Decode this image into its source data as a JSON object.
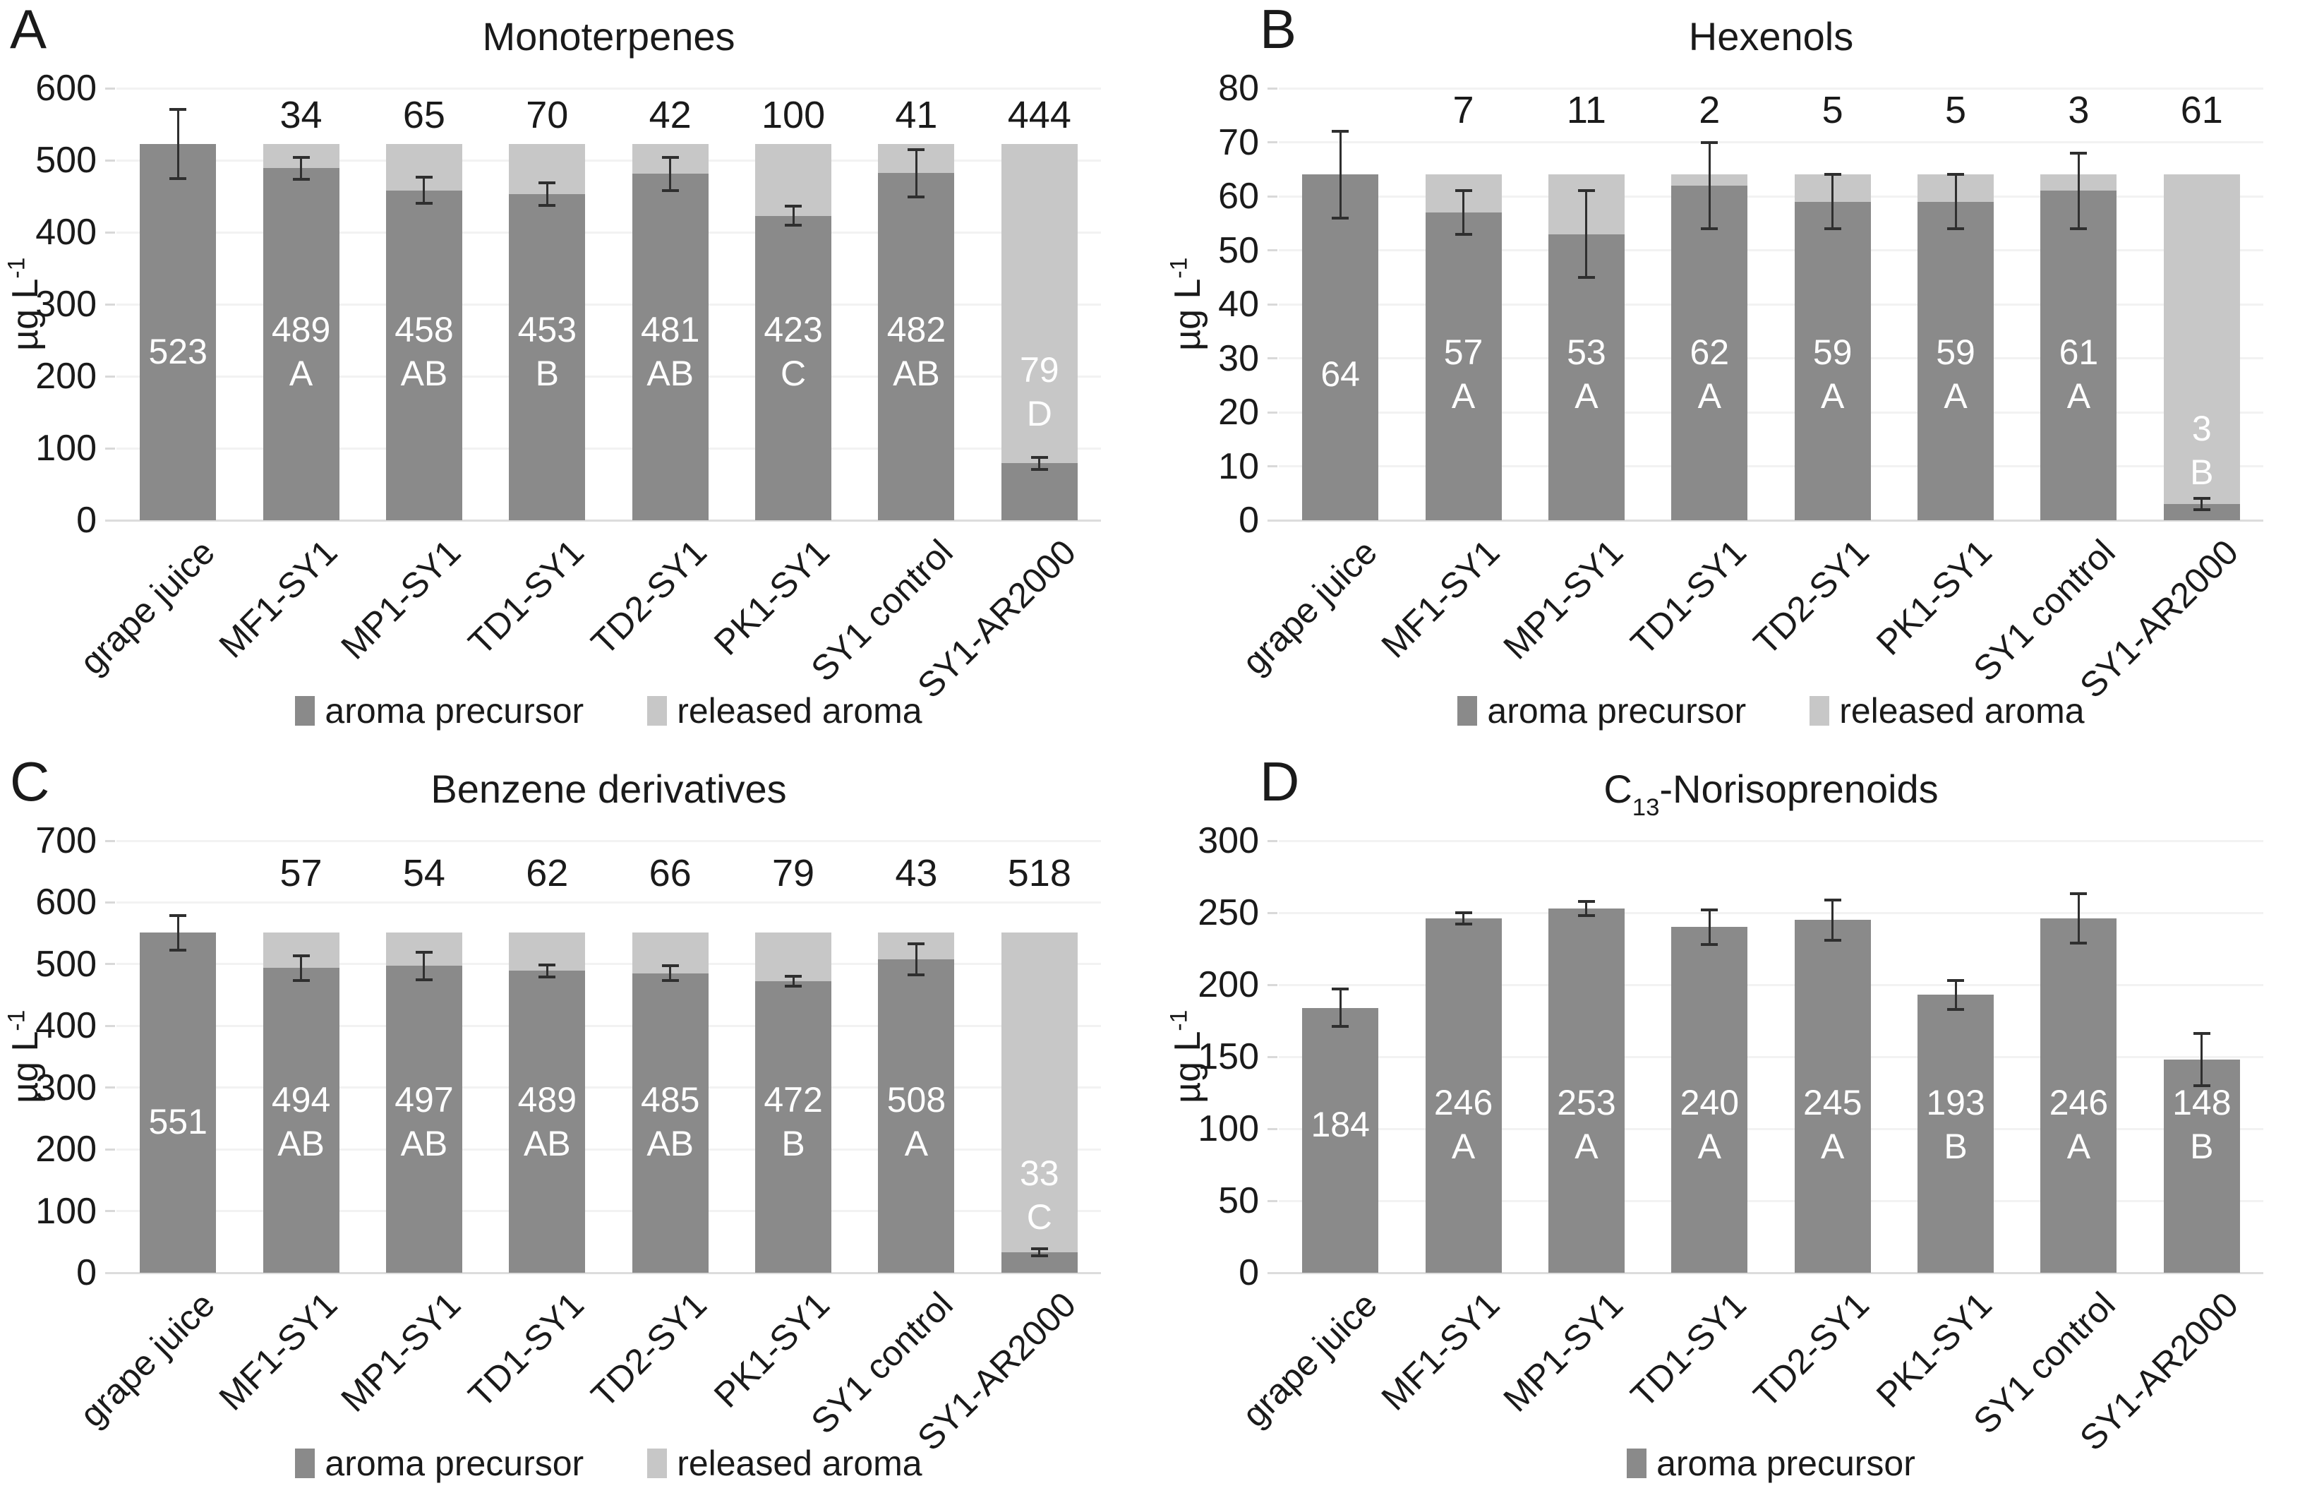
{
  "figure": {
    "background": "#ffffff"
  },
  "colors": {
    "precursor": "#8a8a8a",
    "released": "#c7c7c7",
    "error_bar": "#2f2f2f",
    "gridline": "#f2f2f2",
    "baseline": "#dcdcdc",
    "tick_stub": "#d9d9d9",
    "bar_label": "#ffffff",
    "text": "#1a1a1a"
  },
  "categories": [
    "grape juice",
    "MF1-SY1",
    "MP1-SY1",
    "TD1-SY1",
    "TD2-SY1",
    "PK1-SY1",
    "SY1 control",
    "SY1-AR2000"
  ],
  "ylabel": {
    "base": "µg L",
    "sup": "-1"
  },
  "legend": {
    "precursor": "aroma precursor",
    "released": "released aroma"
  },
  "chart_data": [
    {
      "panel_letter": "A",
      "title_parts": [
        {
          "text": "Monoterpenes"
        }
      ],
      "type": "bar",
      "stacked": true,
      "ymax": 600,
      "ystep": 100,
      "yticks": [
        0,
        100,
        200,
        300,
        400,
        500,
        600
      ],
      "series": [
        {
          "name": "aroma precursor",
          "values": [
            523,
            489,
            458,
            453,
            481,
            423,
            482,
            79
          ]
        },
        {
          "name": "released aroma",
          "values": [
            0,
            34,
            65,
            70,
            42,
            100,
            41,
            444
          ]
        }
      ],
      "sig_letters": [
        "",
        "A",
        "AB",
        "B",
        "AB",
        "C",
        "AB",
        "D"
      ],
      "error_bars": [
        48,
        15,
        18,
        16,
        23,
        13,
        33,
        8
      ],
      "label_center_value": 234,
      "label_center_overrides": {
        "7": 178
      },
      "top_label_anchor": 563,
      "legend_items": [
        "precursor",
        "released"
      ]
    },
    {
      "panel_letter": "B",
      "title_parts": [
        {
          "text": "Hexenols"
        }
      ],
      "type": "bar",
      "stacked": true,
      "ymax": 80,
      "ystep": 10,
      "yticks": [
        0,
        10,
        20,
        30,
        40,
        50,
        60,
        70,
        80
      ],
      "series": [
        {
          "name": "aroma precursor",
          "values": [
            64,
            57,
            53,
            62,
            59,
            59,
            61,
            3
          ]
        },
        {
          "name": "released aroma",
          "values": [
            0,
            7,
            11,
            2,
            5,
            5,
            3,
            61
          ]
        }
      ],
      "sig_letters": [
        "",
        "A",
        "A",
        "A",
        "A",
        "A",
        "A",
        "B"
      ],
      "error_bars": [
        8,
        4,
        8,
        8,
        5,
        5,
        7,
        1
      ],
      "label_center_value": 27,
      "label_center_overrides": {
        "7": 13
      },
      "top_label_anchor": 76,
      "legend_items": [
        "precursor",
        "released"
      ]
    },
    {
      "panel_letter": "C",
      "title_parts": [
        {
          "text": "Benzene derivatives"
        }
      ],
      "type": "bar",
      "stacked": true,
      "ymax": 700,
      "ystep": 100,
      "yticks": [
        0,
        100,
        200,
        300,
        400,
        500,
        600,
        700
      ],
      "series": [
        {
          "name": "aroma precursor",
          "values": [
            551,
            494,
            497,
            489,
            485,
            472,
            508,
            33
          ]
        },
        {
          "name": "released aroma",
          "values": [
            0,
            57,
            54,
            62,
            66,
            79,
            43,
            518
          ]
        }
      ],
      "sig_letters": [
        "",
        "AB",
        "AB",
        "AB",
        "AB",
        "B",
        "A",
        "C"
      ],
      "error_bars": [
        28,
        20,
        22,
        10,
        12,
        8,
        25,
        6
      ],
      "label_center_value": 245,
      "label_center_overrides": {
        "7": 126
      },
      "top_label_anchor": 647,
      "legend_items": [
        "precursor",
        "released"
      ]
    },
    {
      "panel_letter": "D",
      "title_parts": [
        {
          "text": "C"
        },
        {
          "text": "13",
          "sub": true
        },
        {
          "text": "-Norisoprenoids"
        }
      ],
      "type": "bar",
      "stacked": false,
      "ymax": 300,
      "ystep": 50,
      "yticks": [
        0,
        50,
        100,
        150,
        200,
        250,
        300
      ],
      "series": [
        {
          "name": "aroma precursor",
          "values": [
            184,
            246,
            253,
            240,
            245,
            193,
            246,
            148
          ]
        }
      ],
      "sig_letters": [
        "",
        "A",
        "A",
        "A",
        "A",
        "B",
        "A",
        "B"
      ],
      "error_bars": [
        13,
        4,
        5,
        12,
        14,
        10,
        17,
        18
      ],
      "label_center_value": 103,
      "label_center_overrides": {},
      "top_label_anchor": null,
      "legend_items": [
        "precursor"
      ]
    }
  ]
}
